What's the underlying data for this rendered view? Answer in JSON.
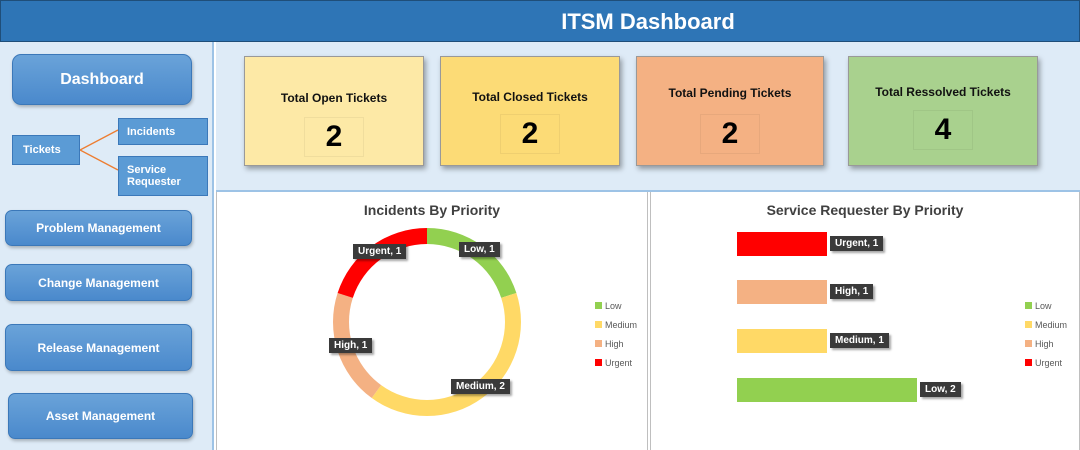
{
  "header": {
    "title": "ITSM Dashboard"
  },
  "sidebar": {
    "dashboard": "Dashboard",
    "tickets": "Tickets",
    "incidents": "Incidents",
    "service_requester": "Service Requester",
    "problem_management": "Problem Management",
    "change_management": "Change Management",
    "release_management": "Release Management",
    "asset_management": "Asset Management"
  },
  "kpis": [
    {
      "label": "Total Open Tickets",
      "value": "2",
      "color": "#fde9a6"
    },
    {
      "label": "Total Closed Tickets",
      "value": "2",
      "color": "#fcdb76"
    },
    {
      "label": "Total Pending Tickets",
      "value": "2",
      "color": "#f4b183"
    },
    {
      "label": "Total Ressolved Tickets",
      "value": "4",
      "color": "#a9d18e"
    }
  ],
  "colors": {
    "low": "#92d050",
    "medium": "#ffd966",
    "high": "#f4b183",
    "urgent": "#ff0000"
  },
  "chart_data": [
    {
      "type": "pie",
      "title": "Incidents By Priority",
      "categories": [
        "Low",
        "Medium",
        "High",
        "Urgent"
      ],
      "values": [
        1,
        2,
        1,
        1
      ],
      "data_labels": [
        "Low, 1",
        "Medium, 2",
        "High, 1",
        "Urgent, 1"
      ],
      "legend": [
        "Low",
        "Medium",
        "High",
        "Urgent"
      ],
      "legend_position": "right"
    },
    {
      "type": "bar",
      "title": "Service Requester By Priority",
      "categories": [
        "Urgent",
        "High",
        "Medium",
        "Low"
      ],
      "values": [
        1,
        1,
        1,
        2
      ],
      "data_labels": [
        "Urgent, 1",
        "High, 1",
        "Medium, 1",
        "Low, 2"
      ],
      "legend": [
        "Low",
        "Medium",
        "High",
        "Urgent"
      ],
      "legend_position": "right"
    }
  ]
}
